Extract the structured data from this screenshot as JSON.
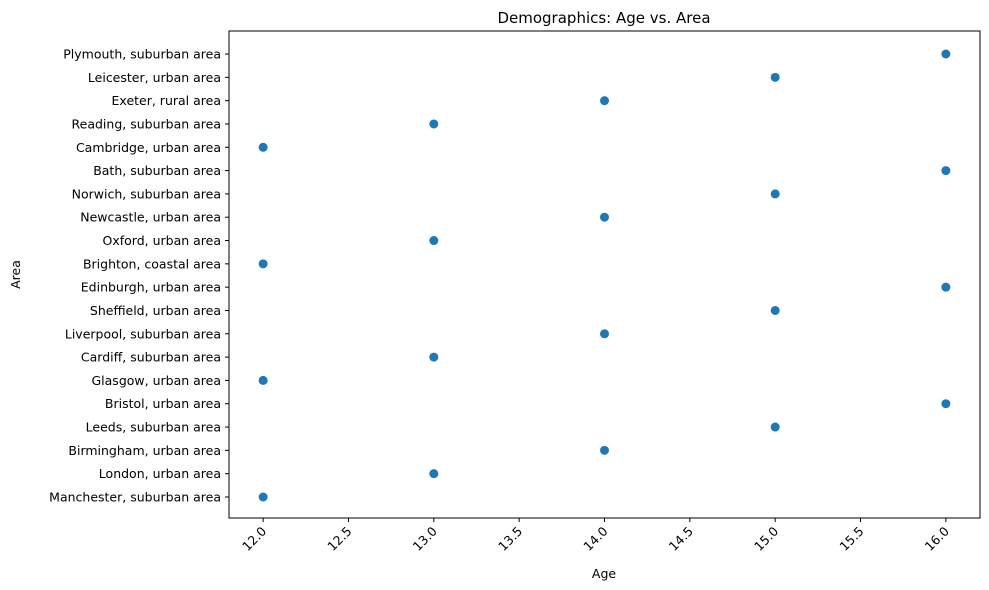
{
  "chart_data": {
    "type": "scatter",
    "title": "Demographics: Age vs. Area",
    "xlabel": "Age",
    "ylabel": "Area",
    "xlim": [
      11.8,
      16.2
    ],
    "xticks": [
      "12.0",
      "12.5",
      "13.0",
      "13.5",
      "14.0",
      "14.5",
      "15.0",
      "15.5",
      "16.0"
    ],
    "categories": [
      "Manchester, suburban area",
      "London, urban area",
      "Birmingham, urban area",
      "Leeds, suburban area",
      "Bristol, urban area",
      "Glasgow, urban area",
      "Cardiff, suburban area",
      "Liverpool, suburban area",
      "Sheffield, urban area",
      "Edinburgh, urban area",
      "Brighton, coastal area",
      "Oxford, urban area",
      "Newcastle, urban area",
      "Norwich, suburban area",
      "Bath, suburban area",
      "Cambridge, urban area",
      "Reading, suburban area",
      "Exeter, rural area",
      "Leicester, urban area",
      "Plymouth, suburban area"
    ],
    "points": [
      {
        "x": 12,
        "y": "Manchester, suburban area"
      },
      {
        "x": 13,
        "y": "London, urban area"
      },
      {
        "x": 14,
        "y": "Birmingham, urban area"
      },
      {
        "x": 15,
        "y": "Leeds, suburban area"
      },
      {
        "x": 16,
        "y": "Bristol, urban area"
      },
      {
        "x": 12,
        "y": "Glasgow, urban area"
      },
      {
        "x": 13,
        "y": "Cardiff, suburban area"
      },
      {
        "x": 14,
        "y": "Liverpool, suburban area"
      },
      {
        "x": 15,
        "y": "Sheffield, urban area"
      },
      {
        "x": 16,
        "y": "Edinburgh, urban area"
      },
      {
        "x": 12,
        "y": "Brighton, coastal area"
      },
      {
        "x": 13,
        "y": "Oxford, urban area"
      },
      {
        "x": 14,
        "y": "Newcastle, urban area"
      },
      {
        "x": 15,
        "y": "Norwich, suburban area"
      },
      {
        "x": 16,
        "y": "Bath, suburban area"
      },
      {
        "x": 12,
        "y": "Cambridge, urban area"
      },
      {
        "x": 13,
        "y": "Reading, suburban area"
      },
      {
        "x": 14,
        "y": "Exeter, rural area"
      },
      {
        "x": 15,
        "y": "Leicester, urban area"
      },
      {
        "x": 16,
        "y": "Plymouth, suburban area"
      }
    ],
    "marker_color": "#1f77b4",
    "grid": false,
    "legend": "none"
  }
}
